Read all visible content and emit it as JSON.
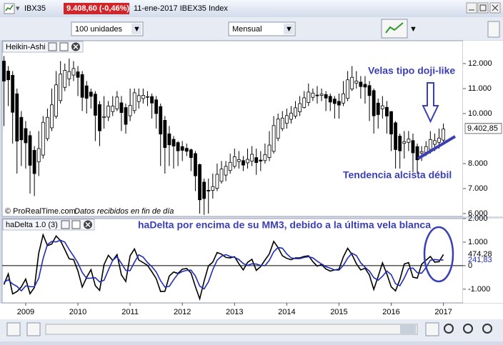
{
  "window": {
    "symbol": "IBX35",
    "price_change": "9.408,60 (-0,46%)",
    "description": "11-ene-2017 IBEX35 Index"
  },
  "toolbar": {
    "quantity": "100 unidades",
    "period": "Mensual"
  },
  "chart_data": [
    {
      "type": "candlestick",
      "title": "Heikin-Ashi",
      "open": [
        12100,
        11700,
        11530,
        10790,
        9850,
        9400,
        9120,
        8530,
        8070,
        8340,
        9000,
        9430,
        9890,
        10520,
        11050,
        11390,
        11540,
        11670,
        11560,
        11110,
        10860,
        10780,
        10360,
        9840,
        9860,
        10080,
        10190,
        10430,
        10240,
        9910,
        10120,
        10480,
        10600,
        10670,
        10680,
        10550,
        10280,
        9730,
        9190,
        8970,
        8840,
        8680,
        8610,
        8550,
        8400,
        7960,
        7260,
        6930,
        6930,
        7010,
        7290,
        7540,
        7720,
        7890,
        8080,
        8120,
        8030,
        8100,
        8240,
        8140,
        8120,
        8240,
        8490,
        9010,
        9400,
        9610,
        9770,
        9900,
        10070,
        10240,
        10440,
        10650,
        10740,
        10730,
        10760,
        10690,
        10580,
        10490,
        10420,
        10610,
        10980,
        11220,
        11260,
        11170,
        11120,
        10920,
        10420,
        10190,
        10250,
        10080,
        9630,
        9100,
        8810,
        8850,
        8920,
        8680,
        8420,
        8450,
        8570,
        8770,
        8850,
        8940
      ],
      "high": [
        12300,
        11900,
        11700,
        11000,
        10100,
        9700,
        9300,
        8700,
        9300,
        9900,
        10200,
        11000,
        11700,
        12100,
        12000,
        12200,
        12100,
        11900,
        11700,
        11300,
        11000,
        10900,
        10500,
        10700,
        10500,
        10700,
        10900,
        10700,
        10400,
        11000,
        11000,
        11000,
        11000,
        10900,
        10800,
        10700,
        10400,
        9900,
        9500,
        9100,
        8900,
        8900,
        8800,
        8600,
        8500,
        8000,
        7400,
        7400,
        7600,
        8000,
        8100,
        8100,
        8400,
        8600,
        8500,
        8300,
        8600,
        8700,
        8600,
        8500,
        8800,
        9300,
        9900,
        10000,
        10100,
        10200,
        10300,
        10500,
        10700,
        10900,
        11200,
        11000,
        11100,
        11000,
        10900,
        10800,
        10700,
        10800,
        11300,
        11700,
        11900,
        11700,
        11500,
        11500,
        11300,
        11000,
        10600,
        10700,
        10500,
        10100,
        9700,
        9200,
        9300,
        9300,
        9200,
        8800,
        8700,
        8900,
        9300,
        9200,
        9400,
        9600
      ],
      "low": [
        9500,
        10300,
        8800,
        7600,
        7900,
        7800,
        6800,
        6700,
        7500,
        8200,
        8900,
        9300,
        9800,
        10400,
        10900,
        11100,
        11300,
        10700,
        10100,
        10000,
        10200,
        8900,
        8700,
        9400,
        9700,
        9900,
        10100,
        9300,
        9200,
        9700,
        10000,
        10200,
        10400,
        10300,
        9800,
        9400,
        7900,
        7600,
        7900,
        7800,
        7900,
        8100,
        8300,
        7700,
        6900,
        6000,
        5950,
        6000,
        6600,
        6900,
        7200,
        7300,
        7600,
        7800,
        7800,
        7700,
        7800,
        7900,
        7550,
        7700,
        8000,
        8100,
        8400,
        8900,
        9300,
        9400,
        9600,
        9800,
        9900,
        10200,
        10300,
        10500,
        10400,
        10500,
        10100,
        10100,
        9800,
        9800,
        10300,
        10500,
        10900,
        11000,
        10600,
        10400,
        9700,
        9200,
        9400,
        9800,
        9200,
        8500,
        7800,
        7800,
        8200,
        8500,
        7650,
        7600,
        8100,
        8300,
        8400,
        8500,
        8600,
        8850
      ],
      "close": [
        11300,
        11350,
        10050,
        8900,
        8950,
        8830,
        7930,
        7600,
        8600,
        9650,
        9850,
        10350,
        11150,
        11580,
        11730,
        11680,
        11800,
        11450,
        10650,
        10610,
        10690,
        9930,
        9310,
        9880,
        10300,
        10300,
        10660,
        10040,
        9570,
        10330,
        10830,
        10720,
        10730,
        10680,
        10420,
        10000,
        9180,
        8640,
        8750,
        8700,
        8510,
        8530,
        8490,
        8240,
        7510,
        6550,
        6600,
        6920,
        7080,
        7570,
        7780,
        7890,
        8050,
        8270,
        8160,
        7940,
        8170,
        8370,
        8040,
        8100,
        8360,
        8740,
        9520,
        9780,
        9820,
        9920,
        10020,
        10230,
        10400,
        10630,
        10860,
        10820,
        10720,
        10780,
        10620,
        10460,
        10400,
        10340,
        10790,
        11350,
        11450,
        11300,
        11080,
        11060,
        10720,
        9910,
        9960,
        10310,
        9900,
        9180,
        8560,
        8510,
        8880,
        8980,
        8430,
        8150,
        8480,
        8680,
        8960,
        8920,
        9020,
        9380
      ],
      "up_color": "#ffffff",
      "down_color": "#000000",
      "ylim": [
        5900,
        12900
      ],
      "yticks": [
        {
          "value": 12000,
          "label": "12.000"
        },
        {
          "value": 11000,
          "label": "11.000"
        },
        {
          "value": 10000,
          "label": "10.000"
        },
        {
          "value": 8000,
          "label": "8.000"
        },
        {
          "value": 7000,
          "label": "7.000"
        },
        {
          "value": 6000,
          "label": "6.000"
        }
      ],
      "price_labels": [
        {
          "value": 9408.6,
          "label": "9.408,60",
          "color": "#f5cf45"
        },
        {
          "value": 9402.85,
          "label": "9.402,85",
          "color": "#ffffff"
        }
      ],
      "annotations": [
        "Velas tipo doji-like",
        "Tendencia alcista débil"
      ],
      "source": "© ProRealTime.com",
      "source_note": "Datos recibidos en fin de día"
    },
    {
      "type": "line",
      "title": "haDelta 1.0 (3)",
      "annotation": "haDelta por encima de su MM3, debido a la última vela blanca",
      "categories": [
        null,
        null,
        null,
        null,
        null,
        "2009",
        null,
        null,
        null,
        null,
        null,
        null,
        null,
        null,
        null,
        null,
        null,
        "2010",
        null,
        null,
        null,
        null,
        null,
        null,
        null,
        null,
        null,
        null,
        null,
        "2011",
        null,
        null,
        null,
        null,
        null,
        null,
        null,
        null,
        null,
        null,
        null,
        "2012",
        null,
        null,
        null,
        null,
        null,
        null,
        null,
        null,
        null,
        null,
        null,
        "2013",
        null,
        null,
        null,
        null,
        null,
        null,
        null,
        null,
        null,
        null,
        null,
        "2014",
        null,
        null,
        null,
        null,
        null,
        null,
        null,
        null,
        null,
        null,
        null,
        "2015",
        null,
        null,
        null,
        null,
        null,
        null,
        null,
        null,
        null,
        null,
        null,
        "2016",
        null,
        null,
        null,
        null,
        null,
        null,
        null,
        null,
        null,
        null,
        null,
        "2017"
      ],
      "series": [
        {
          "color": "#000000",
          "last_label": "474,28",
          "values": [
            -800,
            -350,
            -1200,
            -1100,
            -900,
            -570,
            -1190,
            -930,
            530,
            1310,
            850,
            920,
            1260,
            1060,
            680,
            290,
            260,
            -220,
            -910,
            -500,
            -170,
            -850,
            -1050,
            40,
            440,
            220,
            470,
            -390,
            -670,
            420,
            710,
            240,
            130,
            10,
            -260,
            -550,
            -1100,
            -1090,
            -440,
            -270,
            -330,
            -150,
            -120,
            -310,
            -890,
            -1410,
            -660,
            -10,
            150,
            560,
            490,
            350,
            330,
            380,
            80,
            -180,
            140,
            270,
            -200,
            -40,
            240,
            500,
            1030,
            770,
            420,
            310,
            250,
            330,
            330,
            390,
            420,
            170,
            -20,
            50,
            -140,
            -230,
            -180,
            -150,
            370,
            740,
            470,
            80,
            -180,
            -110,
            -400,
            -1010,
            -460,
            120,
            -350,
            -900,
            -1070,
            -590,
            70,
            130,
            -490,
            -530,
            60,
            230,
            390,
            150,
            170,
            474.28
          ]
        },
        {
          "color": "#1f2db5",
          "last_label": "241,83",
          "values": [
            -700,
            -600,
            -780,
            -880,
            -1070,
            -860,
            -890,
            -900,
            -530,
            300,
            900,
            1030,
            1010,
            1080,
            1000,
            680,
            410,
            110,
            -290,
            -540,
            -530,
            -510,
            -690,
            -620,
            -190,
            230,
            380,
            100,
            -200,
            -210,
            150,
            460,
            360,
            130,
            -40,
            -270,
            -640,
            -910,
            -880,
            -600,
            -350,
            -250,
            -200,
            -190,
            -440,
            -870,
            -990,
            -690,
            -170,
            230,
            400,
            470,
            390,
            350,
            260,
            90,
            10,
            80,
            70,
            10,
            0,
            230,
            590,
            770,
            740,
            500,
            330,
            300,
            300,
            350,
            380,
            330,
            190,
            70,
            -40,
            -110,
            -180,
            -190,
            10,
            320,
            530,
            430,
            120,
            -70,
            -230,
            -510,
            -620,
            -450,
            -230,
            -380,
            -770,
            -850,
            -530,
            -130,
            -100,
            -300,
            -320,
            -80,
            230,
            260,
            240,
            241.83
          ]
        }
      ],
      "ylim": [
        -1580,
        2000
      ],
      "yticks": [
        {
          "value": 2000,
          "label": "2.000"
        },
        {
          "value": 1000,
          "label": "1.000"
        },
        0,
        {
          "value": -1000,
          "label": "-1.000"
        }
      ],
      "zero_line": true
    }
  ]
}
